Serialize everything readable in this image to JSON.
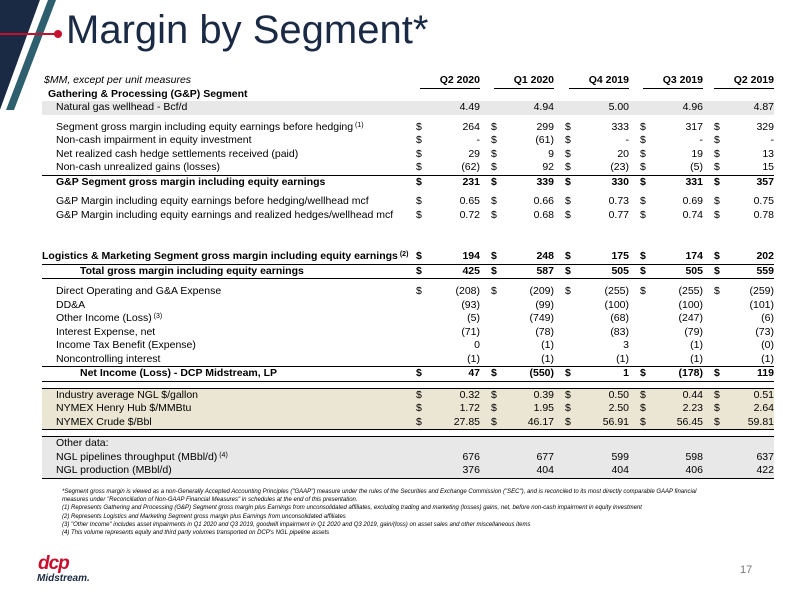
{
  "title": "Margin by Segment*",
  "header": {
    "units": "$MM, except per unit measures",
    "columns": [
      "Q2 2020",
      "Q1 2020",
      "Q4 2019",
      "Q3 2019",
      "Q2 2019"
    ]
  },
  "rows": [
    {
      "label": "Gathering & Processing (G&P) Segment",
      "style": "sec",
      "cells": []
    },
    {
      "label": "Natural gas wellhead - Bcf/d",
      "style": "shade",
      "cur": false,
      "cells": [
        "4.49",
        "4.94",
        "5.00",
        "4.96",
        "4.87"
      ]
    },
    {
      "style": "gap"
    },
    {
      "label": "Segment gross margin including equity earnings before hedging",
      "sup": "(1)",
      "cur": true,
      "cells": [
        "264",
        "299",
        "333",
        "317",
        "329"
      ]
    },
    {
      "label": "Non-cash impairment in equity investment",
      "cur": true,
      "cells": [
        "-",
        "(61)",
        "-",
        "-",
        "-"
      ]
    },
    {
      "label": "Net realized cash hedge settlements received (paid)",
      "cur": true,
      "cells": [
        "29",
        "9",
        "20",
        "19",
        "13"
      ]
    },
    {
      "label": "Non-cash unrealized gains (losses)",
      "cur": true,
      "line": "bl",
      "cells": [
        "(62)",
        "92",
        "(23)",
        "(5)",
        "15"
      ]
    },
    {
      "label": "G&P Segment gross margin including equity earnings",
      "style": "bold",
      "cur": true,
      "cells": [
        "231",
        "339",
        "330",
        "331",
        "357"
      ]
    },
    {
      "style": "gap"
    },
    {
      "label": "G&P Margin including equity earnings before hedging/wellhead mcf",
      "cur": true,
      "cells": [
        "0.65",
        "0.66",
        "0.73",
        "0.69",
        "0.75"
      ]
    },
    {
      "label": "G&P Margin including equity earnings and realized hedges/wellhead mcf",
      "cur": true,
      "cells": [
        "0.72",
        "0.68",
        "0.77",
        "0.74",
        "0.78"
      ]
    },
    {
      "style": "gap2"
    },
    {
      "label": "Logistics & Marketing Segment gross margin including equity earnings",
      "sup": "(2)",
      "style": "big",
      "cur": true,
      "line": "bl",
      "cells": [
        "194",
        "248",
        "175",
        "174",
        "202"
      ]
    },
    {
      "label": "Total gross margin including equity earnings",
      "style": "tot",
      "cur": true,
      "line": "bl",
      "cells": [
        "425",
        "587",
        "505",
        "505",
        "559"
      ]
    },
    {
      "style": "gap"
    },
    {
      "label": "Direct Operating and G&A Expense",
      "cur": true,
      "cells": [
        "(208)",
        "(209)",
        "(255)",
        "(255)",
        "(259)"
      ]
    },
    {
      "label": "DD&A",
      "cur": false,
      "cells": [
        "(93)",
        "(99)",
        "(100)",
        "(100)",
        "(101)"
      ]
    },
    {
      "label": "Other Income (Loss)",
      "sup": "(3)",
      "cur": false,
      "cells": [
        "(5)",
        "(749)",
        "(68)",
        "(247)",
        "(6)"
      ]
    },
    {
      "label": "Interest Expense, net",
      "cur": false,
      "cells": [
        "(71)",
        "(78)",
        "(83)",
        "(79)",
        "(73)"
      ]
    },
    {
      "label": "Income Tax Benefit (Expense)",
      "cur": false,
      "cells": [
        "0",
        "(1)",
        "3",
        "(1)",
        "(0)"
      ]
    },
    {
      "label": "Noncontrolling interest",
      "cur": false,
      "line": "bl",
      "cells": [
        "(1)",
        "(1)",
        "(1)",
        "(1)",
        "(1)"
      ]
    },
    {
      "label": "Net Income (Loss) -  DCP Midstream, LP",
      "style": "tot",
      "cur": true,
      "line": "bl",
      "cells": [
        "47",
        "(550)",
        "1",
        "(178)",
        "119"
      ]
    },
    {
      "style": "gap"
    },
    {
      "label": "Industry average NGL $/gallon",
      "style": "shade2",
      "cur": true,
      "line": "bt",
      "cells": [
        "0.32",
        "0.39",
        "0.50",
        "0.44",
        "0.51"
      ]
    },
    {
      "label": "NYMEX Henry Hub $/MMBtu",
      "style": "shade2",
      "cur": true,
      "cells": [
        "1.72",
        "1.95",
        "2.50",
        "2.23",
        "2.64"
      ]
    },
    {
      "label": "NYMEX Crude $/Bbl",
      "style": "shade2",
      "cur": true,
      "line": "bl",
      "cells": [
        "27.85",
        "46.17",
        "56.91",
        "56.45",
        "59.81"
      ]
    },
    {
      "style": "gap"
    },
    {
      "label": "Other data:",
      "style": "shade",
      "line": "bt",
      "cells": []
    },
    {
      "label": "NGL pipelines throughput (MBbl/d)",
      "sup": "(4)",
      "style": "shade",
      "cur": false,
      "cells": [
        "676",
        "677",
        "599",
        "598",
        "637"
      ]
    },
    {
      "label": "NGL production (MBbl/d)",
      "style": "shade",
      "cur": false,
      "line": "bl",
      "cells": [
        "376",
        "404",
        "404",
        "406",
        "422"
      ]
    }
  ],
  "notes": [
    "*Segment gross margin is viewed as a non-Generally Accepted Accounting Principles (\"GAAP\") measure under the rules of the Securities and Exchange Commission (\"SEC\"), and is reconciled to its most directly comparable GAAP financial",
    "measures under \"Reconciliation of Non-GAAP Financial Measures\" in schedules at the end of this presentation.",
    "(1)      Represents Gathering and Processing (G&P) Segment gross margin plus Earnings from unconsolidated affiliates, excluding trading and marketing (losses) gains, net, before non-cash impairment in equity investment",
    "(2)      Represents Logistics and Marketing Segment gross margin plus Earnings from unconsolidated affiliates",
    "(3)      \"Other Income\" includes asset impairments in Q1 2020 and Q3 2019, goodwill impairment in Q1 2020 and Q3 2019, gain/(loss) on asset sales and other miscellaneous items",
    "(4)      This volume represents equity and third party volumes transported on DCP's NGL pipeline assets"
  ],
  "logo": {
    "text": "dcp",
    "sub": "Midstream."
  },
  "page_number": "17",
  "colors": {
    "navy": "#1a2a44",
    "red": "#c8102e",
    "teal": "#1f4e5a"
  }
}
